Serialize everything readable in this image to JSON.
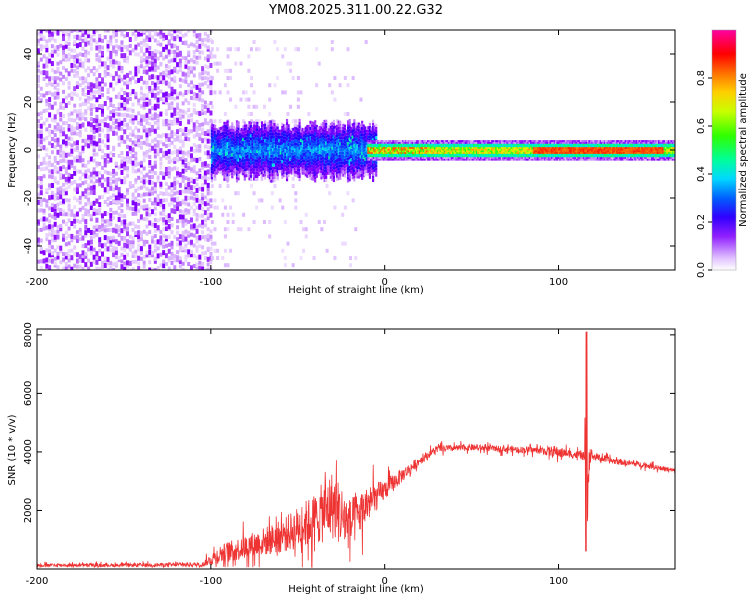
{
  "title": "YM08.2025.311.00.22.G32",
  "chart_data": [
    {
      "type": "heatmap",
      "name": "spectrogram",
      "xlabel": "Height of straight line (km)",
      "ylabel": "Frequency (Hz)",
      "xlim": [
        -200,
        167
      ],
      "ylim": [
        -50,
        50
      ],
      "xticks": [
        -200,
        -100,
        0,
        100
      ],
      "xtick_labels": [
        "-200",
        "-100",
        "0",
        "100"
      ],
      "yticks": [
        -40,
        -20,
        0,
        20,
        40
      ],
      "ytick_labels": [
        "-40",
        "-20",
        "0",
        "20",
        "40"
      ],
      "colorbar": {
        "label": "Normalized spectral amplitude",
        "range": [
          0,
          1
        ],
        "ticks": [
          0.0,
          0.2,
          0.4,
          0.6,
          0.8
        ],
        "tick_labels": [
          "0.0",
          "0.2",
          "0.4",
          "0.6",
          "0.8"
        ],
        "colormap": [
          "#ffffff",
          "#d9b3ff",
          "#8a00ff",
          "#2000ff",
          "#0060ff",
          "#00d8ff",
          "#00ff90",
          "#30ff00",
          "#d0ff00",
          "#ffd000",
          "#ff7000",
          "#ff0000",
          "#ff00a0"
        ]
      },
      "regions": [
        {
          "x": [
            -200,
            -100
          ],
          "description_level": "scattered low amplitude noise",
          "amplitude": 0.15
        },
        {
          "x": [
            -100,
            -10
          ],
          "freq_band": [
            -10,
            10
          ],
          "amplitude": 0.3
        },
        {
          "x": [
            -10,
            165
          ],
          "freq_band": [
            -2,
            2
          ],
          "amplitude": 0.65
        }
      ]
    },
    {
      "type": "line",
      "name": "snr",
      "xlabel": "Height of straight line (km)",
      "ylabel": "SNR (10 * v/v)",
      "xlim": [
        -200,
        167
      ],
      "ylim": [
        0,
        8200
      ],
      "xticks": [
        -200,
        -100,
        0,
        100
      ],
      "xtick_labels": [
        "-200",
        "-100",
        "0",
        "100"
      ],
      "yticks": [
        2000,
        4000,
        6000,
        8000
      ],
      "ytick_labels": [
        "2000",
        "4000",
        "6000",
        "8000"
      ],
      "series": [
        {
          "name": "SNR",
          "color": "#ee3333",
          "x": [
            -200,
            -150,
            -105,
            -95,
            -80,
            -60,
            -40,
            -30,
            -20,
            -10,
            0,
            10,
            20,
            30,
            50,
            70,
            90,
            98,
            105,
            110,
            115,
            116,
            117,
            118,
            120,
            130,
            150,
            167
          ],
          "mean": [
            130,
            130,
            150,
            500,
            750,
            1100,
            1700,
            2200,
            1500,
            2200,
            2700,
            3200,
            3700,
            4100,
            4150,
            4100,
            4050,
            4000,
            3950,
            3900,
            3850,
            4500,
            3000,
            4000,
            3850,
            3700,
            3550,
            3350
          ],
          "amp": [
            80,
            80,
            100,
            450,
            600,
            800,
            1300,
            1700,
            1300,
            900,
            500,
            350,
            200,
            170,
            150,
            150,
            170,
            300,
            200,
            200,
            200,
            3000,
            2000,
            300,
            200,
            150,
            130,
            120
          ]
        }
      ]
    }
  ]
}
